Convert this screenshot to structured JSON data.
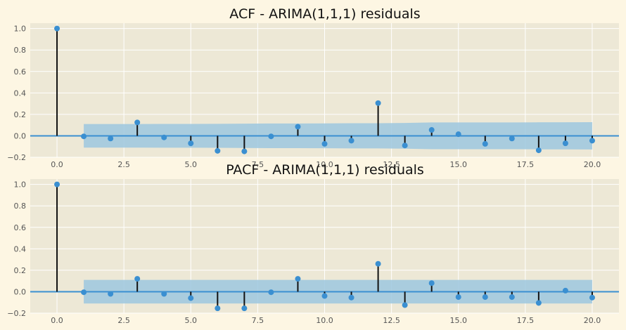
{
  "chart_data": [
    {
      "type": "stem",
      "title": "ACF - ARIMA(1,1,1) residuals",
      "xlim": [
        -1,
        21
      ],
      "ylim": [
        -0.2,
        1.05
      ],
      "xticks": [
        0,
        2.5,
        5,
        7.5,
        10,
        12.5,
        15,
        17.5,
        20
      ],
      "xtick_labels": [
        "0.0",
        "2.5",
        "5.0",
        "7.5",
        "10.0",
        "12.5",
        "15.0",
        "17.5",
        "20.0"
      ],
      "yticks": [
        -0.2,
        0,
        0.2,
        0.4,
        0.6,
        0.8,
        1.0
      ],
      "ytick_labels": [
        "−0.2",
        "0.0",
        "0.2",
        "0.4",
        "0.6",
        "0.8",
        "1.0"
      ],
      "x": [
        0,
        1,
        2,
        3,
        4,
        5,
        6,
        7,
        8,
        9,
        10,
        11,
        12,
        13,
        14,
        15,
        16,
        17,
        18,
        19,
        20
      ],
      "values": [
        1.0,
        -0.005,
        -0.025,
        0.125,
        -0.015,
        -0.07,
        -0.14,
        -0.145,
        -0.005,
        0.085,
        -0.075,
        -0.045,
        0.305,
        -0.09,
        0.055,
        0.015,
        -0.075,
        -0.025,
        -0.135,
        -0.07,
        -0.045
      ],
      "confidence_band": {
        "x_start": 1,
        "x_end": 20,
        "upper": [
          0.11,
          0.11,
          0.11,
          0.111,
          0.111,
          0.112,
          0.113,
          0.115,
          0.115,
          0.116,
          0.117,
          0.117,
          0.12,
          0.125,
          0.125,
          0.125,
          0.125,
          0.126,
          0.126,
          0.127
        ],
        "lower": [
          -0.11,
          -0.11,
          -0.11,
          -0.111,
          -0.111,
          -0.112,
          -0.113,
          -0.115,
          -0.115,
          -0.116,
          -0.117,
          -0.117,
          -0.12,
          -0.125,
          -0.125,
          -0.125,
          -0.125,
          -0.126,
          -0.126,
          -0.127
        ]
      },
      "grid": true
    },
    {
      "type": "stem",
      "title": "PACF - ARIMA(1,1,1) residuals",
      "xlim": [
        -1,
        21
      ],
      "ylim": [
        -0.2,
        1.05
      ],
      "xticks": [
        0,
        2.5,
        5,
        7.5,
        10,
        12.5,
        15,
        17.5,
        20
      ],
      "xtick_labels": [
        "0.0",
        "2.5",
        "5.0",
        "7.5",
        "10.0",
        "12.5",
        "15.0",
        "17.5",
        "20.0"
      ],
      "yticks": [
        -0.2,
        0,
        0.2,
        0.4,
        0.6,
        0.8,
        1.0
      ],
      "ytick_labels": [
        "−0.2",
        "0.0",
        "0.2",
        "0.4",
        "0.6",
        "0.8",
        "1.0"
      ],
      "x": [
        0,
        1,
        2,
        3,
        4,
        5,
        6,
        7,
        8,
        9,
        10,
        11,
        12,
        13,
        14,
        15,
        16,
        17,
        18,
        19,
        20
      ],
      "values": [
        1.0,
        -0.005,
        -0.02,
        0.12,
        -0.02,
        -0.06,
        -0.155,
        -0.155,
        -0.005,
        0.12,
        -0.04,
        -0.055,
        0.26,
        -0.125,
        0.08,
        -0.05,
        -0.05,
        -0.05,
        -0.105,
        0.01,
        -0.055
      ],
      "confidence_band": {
        "x_start": 1,
        "x_end": 20,
        "upper": [
          0.11,
          0.11,
          0.11,
          0.11,
          0.11,
          0.11,
          0.11,
          0.11,
          0.11,
          0.11,
          0.11,
          0.11,
          0.11,
          0.11,
          0.11,
          0.11,
          0.11,
          0.11,
          0.11,
          0.11
        ],
        "lower": [
          -0.11,
          -0.11,
          -0.11,
          -0.11,
          -0.11,
          -0.11,
          -0.11,
          -0.11,
          -0.11,
          -0.11,
          -0.11,
          -0.11,
          -0.11,
          -0.11,
          -0.11,
          -0.11,
          -0.11,
          -0.11,
          -0.11,
          -0.11
        ]
      },
      "grid": true
    }
  ],
  "colors": {
    "page_background": "#fdf6e3",
    "plot_background": "#ede8d6",
    "grid": "#ffffff",
    "stem": "#111111",
    "marker": "#3a8fd1",
    "zero_line": "#3a8fd1",
    "band": "#9cc7df"
  }
}
